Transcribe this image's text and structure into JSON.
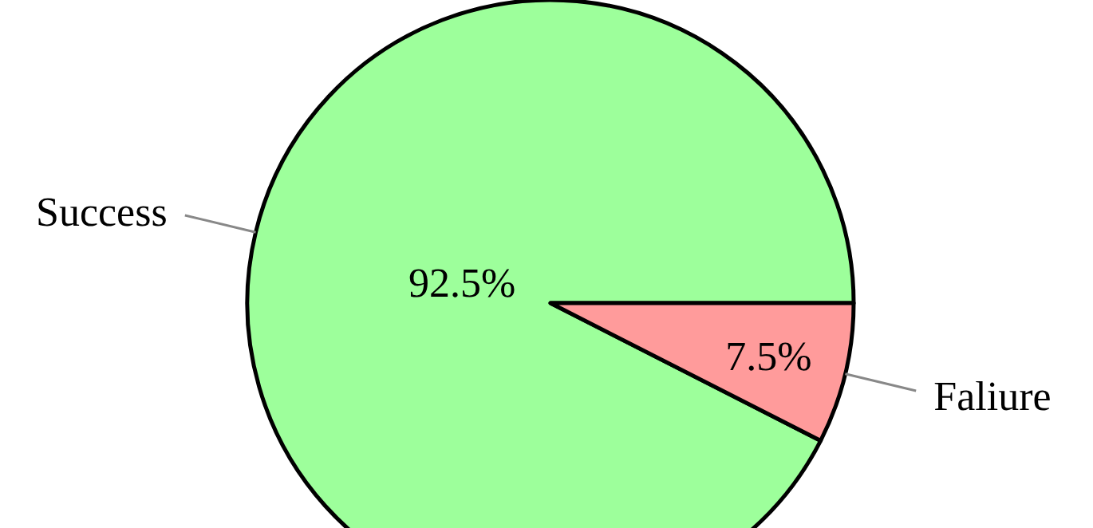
{
  "chart_data": {
    "type": "pie",
    "categories": [
      "Success",
      "Faliure"
    ],
    "values": [
      92.5,
      7.5
    ],
    "colors": [
      "#9dff9b",
      "#ff9b9b"
    ],
    "value_labels": [
      "92.5%",
      "7.5%"
    ],
    "legend": false
  }
}
